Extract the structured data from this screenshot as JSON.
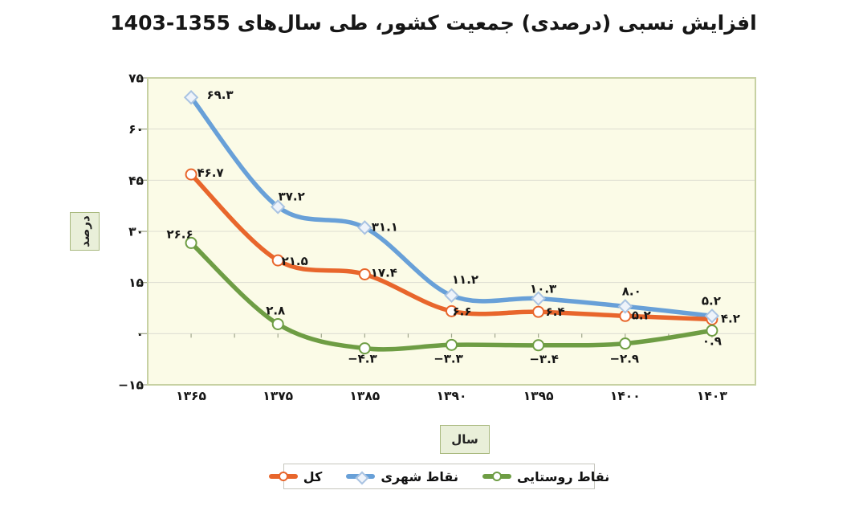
{
  "title": "افزایش نسبی (درصدی) جمعیت کشور، طی سال‌های 1355-1403",
  "axes": {
    "y_label": "درصد",
    "x_label": "سال"
  },
  "legend": {
    "items": [
      {
        "label": "کل",
        "color": "#e8662c",
        "marker": "circle"
      },
      {
        "label": "نقاط شهری",
        "color": "#68a0d8",
        "marker": "diamond"
      },
      {
        "label": "نقاط روستایی",
        "color": "#6e9d44",
        "marker": "circle"
      }
    ]
  },
  "chart_data": {
    "type": "line",
    "title": "افزایش نسبی (درصدی) جمعیت کشور، طی سال‌های 1355-1403",
    "xlabel": "سال",
    "ylabel": "درصد",
    "categories": [
      1365,
      1375,
      1385,
      1390,
      1395,
      1400,
      1403
    ],
    "categories_display": [
      "۱۳۶۵",
      "۱۳۷۵",
      "۱۳۸۵",
      "۱۳۹۰",
      "۱۳۹۵",
      "۱۴۰۰",
      "۱۴۰۳"
    ],
    "ylim": [
      -15,
      75
    ],
    "y_ticks": [
      {
        "value": 75,
        "label": "۷۵"
      },
      {
        "value": 60,
        "label": "۶۰"
      },
      {
        "value": 45,
        "label": "۴۵"
      },
      {
        "value": 30,
        "label": "۳۰"
      },
      {
        "value": 15,
        "label": "۱۵"
      },
      {
        "value": 0,
        "label": "۰"
      },
      {
        "value": -15,
        "label": "−۱۵"
      }
    ],
    "grid": true,
    "legend_position": "bottom",
    "series": [
      {
        "name": "کل",
        "color": "#e8662c",
        "marker": "circle",
        "values": [
          46.7,
          21.5,
          17.4,
          6.6,
          6.4,
          5.2,
          4.2
        ],
        "labels": [
          "۴۶.۷",
          "۲۱.۵",
          "۱۷.۴",
          "۶.۶",
          "۶.۴",
          "۵.۲",
          "۴.۲"
        ],
        "label_offsets": [
          [
            24,
            3
          ],
          [
            21,
            6
          ],
          [
            24,
            3
          ],
          [
            13,
            5
          ],
          [
            21,
            5
          ],
          [
            20,
            4
          ],
          [
            23,
            4
          ]
        ]
      },
      {
        "name": "نقاط شهری",
        "color": "#68a0d8",
        "marker": "diamond",
        "values": [
          69.3,
          37.2,
          31.1,
          11.2,
          10.3,
          8.0,
          5.2
        ],
        "labels": [
          "۶۹.۳",
          "۳۷.۲",
          "۳۱.۱",
          "۱۱.۲",
          "۱۰.۳",
          "۸.۰",
          "۵.۲"
        ],
        "label_offsets": [
          [
            36,
            2
          ],
          [
            17,
            -8
          ],
          [
            25,
            4
          ],
          [
            17,
            -15
          ],
          [
            6,
            -7
          ],
          [
            8,
            -14
          ],
          [
            -1,
            -14
          ]
        ]
      },
      {
        "name": "نقاط روستایی",
        "color": "#6e9d44",
        "marker": "circle",
        "values": [
          26.6,
          2.8,
          -4.3,
          -3.3,
          -3.4,
          -2.9,
          0.9
        ],
        "labels": [
          "۲۶.۶",
          "۲.۸",
          "−۴.۳",
          "−۳.۳",
          "−۳.۴",
          "−۲.۹",
          "۰.۹"
        ],
        "label_offsets": [
          [
            -14,
            -6
          ],
          [
            -3,
            -12
          ],
          [
            -3,
            18
          ],
          [
            -4,
            22
          ],
          [
            7,
            22
          ],
          [
            -1,
            24
          ],
          [
            0,
            18
          ]
        ]
      }
    ],
    "style": {
      "plot_bg": "#fbfbe7",
      "plot_border": "#c7d1a3",
      "gridline": "#dcdcd2",
      "tick": "#a0a68c",
      "label_color": "#161616"
    }
  }
}
